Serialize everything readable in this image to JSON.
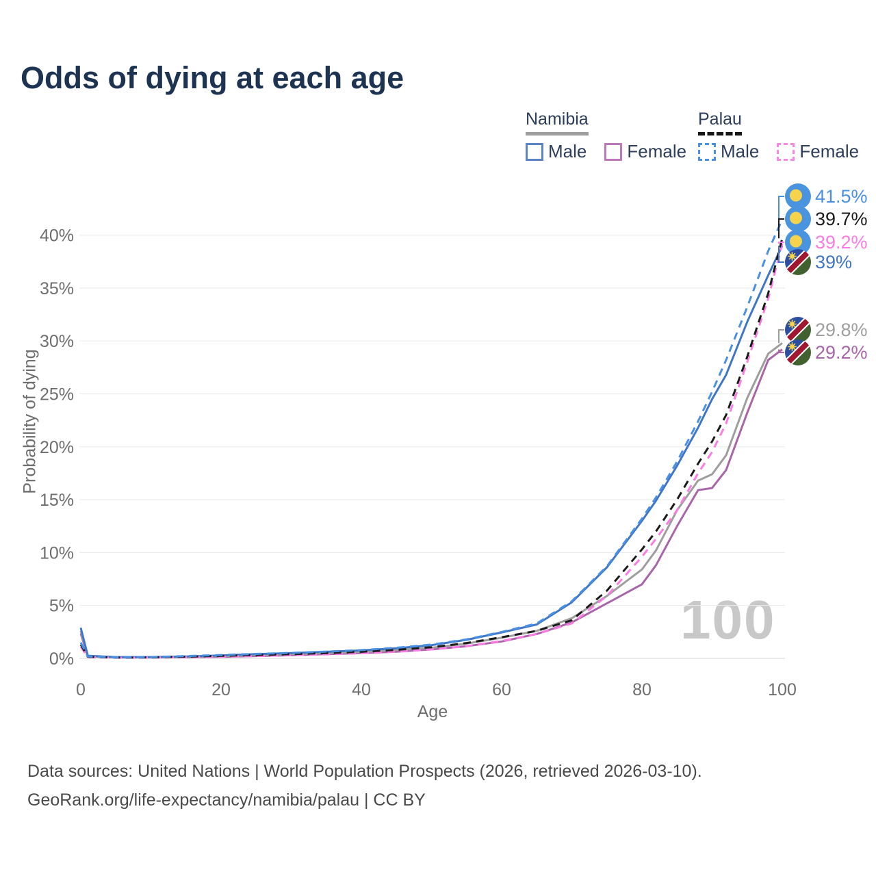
{
  "title": "Odds of dying at each age",
  "legend": {
    "groups": [
      {
        "label": "Namibia",
        "items": [
          {
            "label": "Male"
          },
          {
            "label": "Female"
          }
        ]
      },
      {
        "label": "Palau",
        "items": [
          {
            "label": "Male"
          },
          {
            "label": "Female"
          }
        ]
      }
    ]
  },
  "axes": {
    "x_label": "Age",
    "y_label": "Probability of dying"
  },
  "watermark": "100",
  "footer": {
    "line1": "Data sources: United Nations | World Population Prospects (2026, retrieved 2026-03-10).",
    "line2": "GeoRank.org/life-expectancy/namibia/palau | CC BY"
  },
  "colors": {
    "title": "#1d3352",
    "axis_text": "#6e6e6e",
    "grid": "#ececec",
    "watermark": "#c8c8c8",
    "namibia_underline": "#9e9e9e",
    "palau_underline": "#161616"
  },
  "chart_data": {
    "type": "line",
    "title": "Odds of dying at each age",
    "xlabel": "Age",
    "ylabel": "Probability of dying",
    "xlim": [
      0,
      100
    ],
    "ylim_percent": [
      0,
      43
    ],
    "grid": "horizontal",
    "legend_position": "top-right",
    "x_ticks": [
      {
        "value": 0,
        "label": "0"
      },
      {
        "value": 20,
        "label": "20"
      },
      {
        "value": 40,
        "label": "40"
      },
      {
        "value": 60,
        "label": "60"
      },
      {
        "value": 80,
        "label": "80"
      },
      {
        "value": 100,
        "label": "100"
      }
    ],
    "y_ticks": [
      {
        "value": 0,
        "label": "0%"
      },
      {
        "value": 5,
        "label": "5%"
      },
      {
        "value": 10,
        "label": "10%"
      },
      {
        "value": 15,
        "label": "15%"
      },
      {
        "value": 20,
        "label": "20%"
      },
      {
        "value": 25,
        "label": "25%"
      },
      {
        "value": 30,
        "label": "30%"
      },
      {
        "value": 35,
        "label": "35%"
      },
      {
        "value": 40,
        "label": "40%"
      }
    ],
    "ages": [
      0,
      1,
      5,
      10,
      15,
      20,
      25,
      30,
      35,
      40,
      45,
      50,
      55,
      60,
      65,
      70,
      75,
      80,
      82,
      85,
      88,
      90,
      92,
      95,
      98,
      100
    ],
    "series": [
      {
        "id": "palau-male",
        "name": "Palau Male",
        "country": "Palau",
        "sex": "Male",
        "style": "dashed",
        "dash": "11 8",
        "color": "#4a90e2",
        "flag": "palau-flag-icon",
        "end_label": "41.5%",
        "end_value_percent": 41.5,
        "values": [
          1.5,
          0.18,
          0.1,
          0.12,
          0.22,
          0.32,
          0.42,
          0.52,
          0.64,
          0.78,
          1.0,
          1.3,
          1.8,
          2.5,
          3.3,
          5.4,
          8.7,
          13.2,
          15.2,
          18.6,
          22.4,
          25.2,
          28.2,
          33.2,
          38.5,
          41.5
        ]
      },
      {
        "id": "palau-both",
        "name": "Palau (both sexes)",
        "country": "Palau",
        "sex": "Both",
        "style": "dashed",
        "dash": "11 8",
        "color": "#1b1b1b",
        "flag": "palau-flag-icon",
        "end_label": "39.7%",
        "end_value_percent": 39.7,
        "values": [
          1.3,
          0.15,
          0.08,
          0.09,
          0.16,
          0.24,
          0.32,
          0.4,
          0.5,
          0.62,
          0.8,
          1.05,
          1.45,
          2.0,
          2.6,
          3.6,
          6.4,
          10.3,
          12.0,
          15.0,
          18.4,
          20.5,
          23.0,
          28.5,
          34.5,
          39.7
        ]
      },
      {
        "id": "palau-female",
        "name": "Palau Female",
        "country": "Palau",
        "sex": "Female",
        "style": "dashed",
        "dash": "11 8",
        "color": "#fb7ce4",
        "flag": "palau-flag-icon",
        "end_label": "39.2%",
        "end_value_percent": 39.2,
        "values": [
          1.1,
          0.12,
          0.07,
          0.08,
          0.11,
          0.16,
          0.22,
          0.3,
          0.38,
          0.48,
          0.63,
          0.85,
          1.15,
          1.65,
          2.3,
          3.3,
          5.9,
          9.6,
          11.3,
          14.0,
          17.5,
          19.5,
          22.2,
          28.0,
          34.0,
          39.2
        ]
      },
      {
        "id": "namibia-male",
        "name": "Namibia Male",
        "country": "Namibia",
        "sex": "Male",
        "style": "solid",
        "dash": null,
        "color": "#3f76c6",
        "flag": "namibia-flag-icon",
        "end_label": "39%",
        "end_value_percent": 39,
        "values": [
          2.9,
          0.25,
          0.12,
          0.12,
          0.18,
          0.28,
          0.4,
          0.5,
          0.62,
          0.75,
          0.95,
          1.25,
          1.75,
          2.45,
          3.2,
          5.3,
          8.6,
          13.0,
          14.9,
          18.2,
          21.8,
          24.5,
          26.8,
          31.8,
          36.2,
          39.0
        ]
      },
      {
        "id": "namibia-both",
        "name": "Namibia (both sexes)",
        "country": "Namibia",
        "sex": "Both",
        "style": "solid",
        "dash": null,
        "color": "#9e9e9e",
        "flag": "namibia-flag-icon",
        "end_label": "29.8%",
        "end_value_percent": 29.8,
        "values": [
          2.6,
          0.22,
          0.1,
          0.1,
          0.14,
          0.2,
          0.3,
          0.4,
          0.5,
          0.6,
          0.78,
          1.0,
          1.4,
          1.95,
          2.6,
          3.8,
          5.9,
          8.4,
          10.2,
          14.0,
          16.8,
          17.4,
          19.2,
          24.6,
          28.8,
          29.8
        ]
      },
      {
        "id": "namibia-female",
        "name": "Namibia Female",
        "country": "Namibia",
        "sex": "Female",
        "style": "solid",
        "dash": null,
        "color": "#a965a9",
        "flag": "namibia-flag-icon",
        "end_label": "29.2%",
        "end_value_percent": 29.2,
        "values": [
          2.35,
          0.2,
          0.09,
          0.09,
          0.11,
          0.15,
          0.22,
          0.3,
          0.4,
          0.5,
          0.63,
          0.85,
          1.15,
          1.6,
          2.3,
          3.4,
          5.2,
          7.0,
          8.8,
          12.5,
          15.9,
          16.1,
          17.8,
          23.2,
          28.2,
          29.2
        ]
      }
    ]
  }
}
